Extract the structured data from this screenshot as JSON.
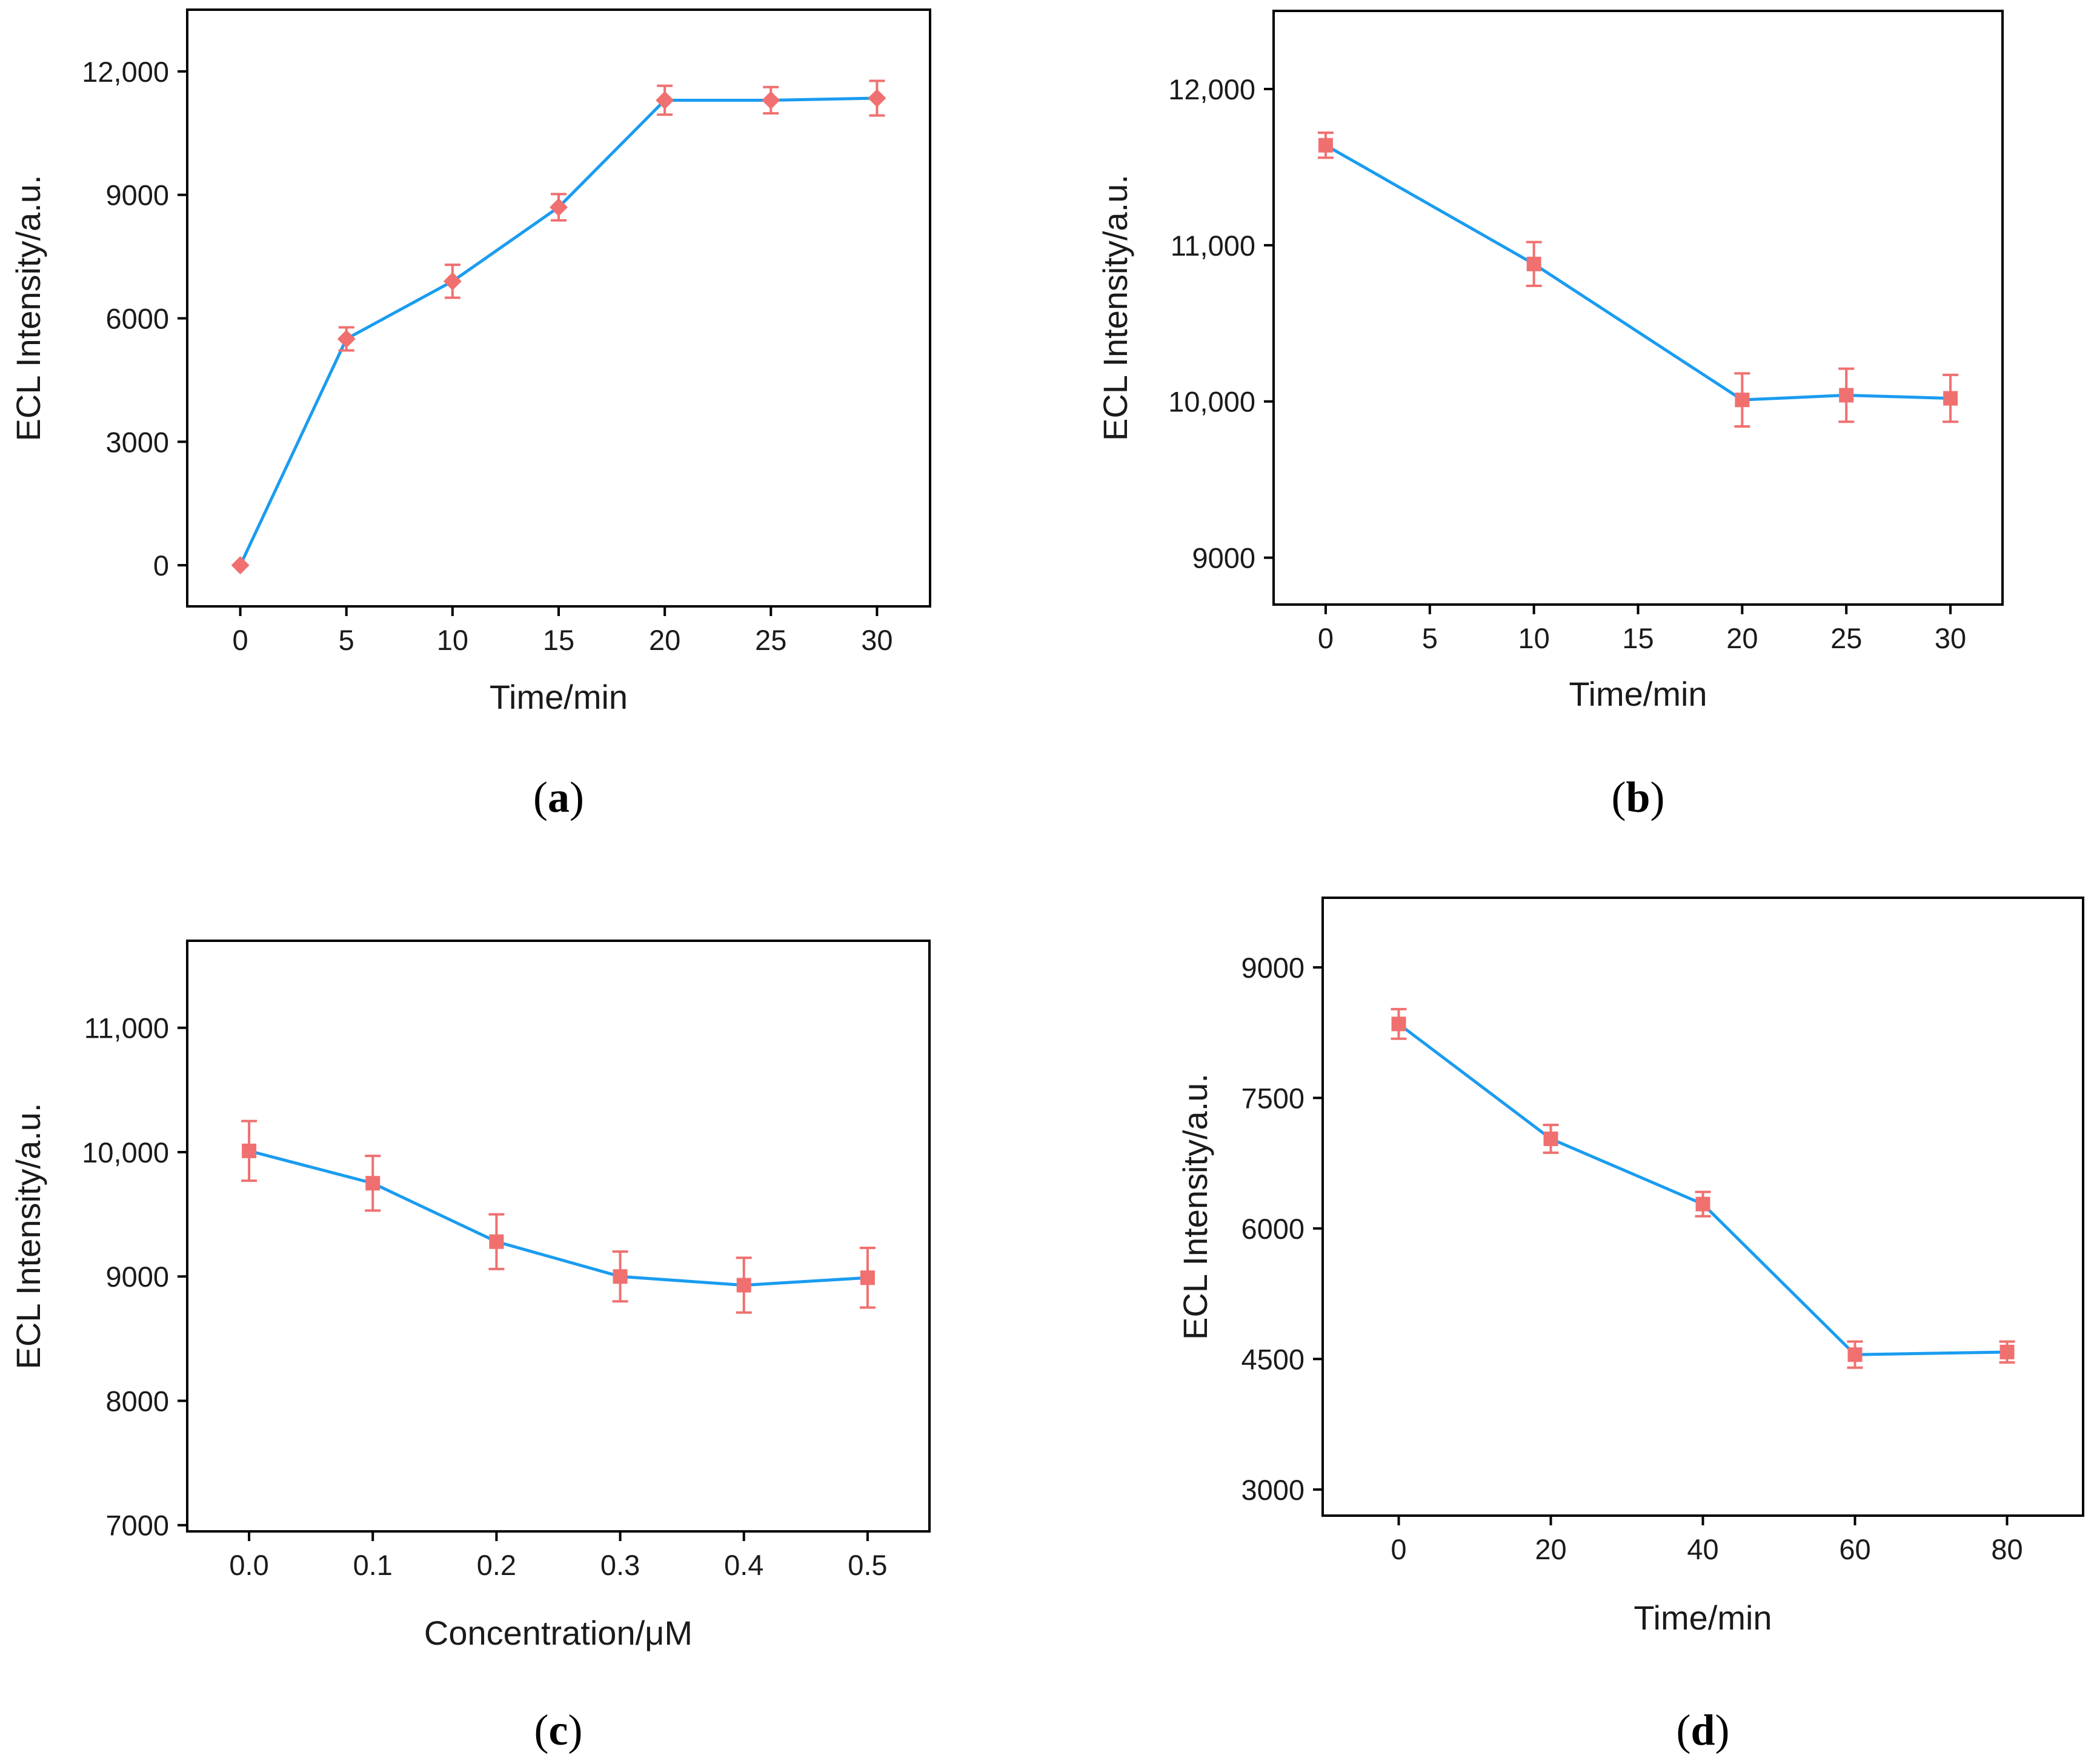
{
  "colors": {
    "line": "#1a9cf0",
    "marker": "#f07070",
    "axis": "#000000"
  },
  "chart_data": [
    {
      "type": "line",
      "caption": "a",
      "marker": "diamond",
      "xlabel": "Time/min",
      "ylabel": "ECL Intensity/a.u.",
      "xlim": [
        -2.5,
        32.5
      ],
      "ylim": [
        -1000,
        13500
      ],
      "xticks": [
        0,
        5,
        10,
        15,
        20,
        25,
        30
      ],
      "xtick_labels": [
        "0",
        "5",
        "10",
        "15",
        "20",
        "25",
        "30"
      ],
      "yticks": [
        0,
        3000,
        6000,
        9000,
        12000
      ],
      "ytick_labels": [
        "0",
        "3000",
        "6000",
        "9000",
        "12,000"
      ],
      "x": [
        0,
        5,
        10,
        15,
        20,
        25,
        30
      ],
      "y": [
        0,
        5500,
        6900,
        8700,
        11300,
        11300,
        11350
      ],
      "err": [
        0,
        280,
        400,
        320,
        350,
        320,
        420
      ]
    },
    {
      "type": "line",
      "caption": "b",
      "marker": "square",
      "xlabel": "Time/min",
      "ylabel": "ECL Intensity/a.u.",
      "xlim": [
        -2.5,
        32.5
      ],
      "ylim": [
        8700,
        12500
      ],
      "xticks": [
        0,
        5,
        10,
        15,
        20,
        25,
        30
      ],
      "xtick_labels": [
        "0",
        "5",
        "10",
        "15",
        "20",
        "25",
        "30"
      ],
      "yticks": [
        9000,
        10000,
        11000,
        12000
      ],
      "ytick_labels": [
        "9000",
        "10,000",
        "11,000",
        "12,000"
      ],
      "x": [
        0,
        10,
        20,
        25,
        30
      ],
      "y": [
        11640,
        10880,
        10010,
        10040,
        10020
      ],
      "err": [
        80,
        140,
        170,
        170,
        150
      ]
    },
    {
      "type": "line",
      "caption": "c",
      "marker": "square",
      "xlabel": "Concentration/μM",
      "ylabel": "ECL Intensity/a.u.",
      "xlim": [
        -0.05,
        0.55
      ],
      "ylim": [
        6950,
        11700
      ],
      "xticks": [
        0.0,
        0.1,
        0.2,
        0.3,
        0.4,
        0.5
      ],
      "xtick_labels": [
        "0.0",
        "0.1",
        "0.2",
        "0.3",
        "0.4",
        "0.5"
      ],
      "yticks": [
        7000,
        8000,
        9000,
        10000,
        11000
      ],
      "ytick_labels": [
        "7000",
        "8000",
        "9000",
        "10,000",
        "11,000"
      ],
      "x": [
        0.0,
        0.1,
        0.2,
        0.3,
        0.4,
        0.5
      ],
      "y": [
        10010,
        9750,
        9280,
        9000,
        8930,
        8990
      ],
      "err": [
        240,
        220,
        220,
        200,
        220,
        240
      ]
    },
    {
      "type": "line",
      "caption": "d",
      "marker": "square",
      "xlabel": "Time/min",
      "ylabel": "ECL Intensity/a.u.",
      "xlim": [
        -10,
        90
      ],
      "ylim": [
        2700,
        9800
      ],
      "xticks": [
        0,
        20,
        40,
        60,
        80
      ],
      "xtick_labels": [
        "0",
        "20",
        "40",
        "60",
        "80"
      ],
      "yticks": [
        3000,
        4500,
        6000,
        7500,
        9000
      ],
      "ytick_labels": [
        "3000",
        "4500",
        "6000",
        "7500",
        "9000"
      ],
      "x": [
        0,
        20,
        40,
        60,
        80
      ],
      "y": [
        8350,
        7030,
        6280,
        4550,
        4580
      ],
      "err": [
        170,
        160,
        140,
        150,
        120
      ]
    }
  ]
}
